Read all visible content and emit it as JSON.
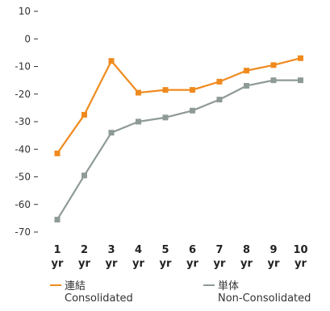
{
  "chart_data": {
    "type": "line",
    "x": [
      1,
      2,
      3,
      4,
      5,
      6,
      7,
      8,
      9,
      10
    ],
    "x_tick_labels": [
      {
        "num": "1",
        "unit": "yr"
      },
      {
        "num": "2",
        "unit": "yr"
      },
      {
        "num": "3",
        "unit": "yr"
      },
      {
        "num": "4",
        "unit": "yr"
      },
      {
        "num": "5",
        "unit": "yr"
      },
      {
        "num": "6",
        "unit": "yr"
      },
      {
        "num": "7",
        "unit": "yr"
      },
      {
        "num": "8",
        "unit": "yr"
      },
      {
        "num": "9",
        "unit": "yr"
      },
      {
        "num": "10",
        "unit": "yr"
      }
    ],
    "y_ticks": [
      "10",
      "0",
      "-10",
      "-20",
      "-30",
      "-40",
      "-50",
      "-60",
      "-70"
    ],
    "ylim": [
      -70,
      10
    ],
    "grid": false,
    "legend_placement": "bottom",
    "series": [
      {
        "name": "連結",
        "name_en": "Consolidated",
        "color": "#ef8a1e",
        "values": [
          -41.5,
          -27.5,
          -8.0,
          -19.5,
          -18.5,
          -18.5,
          -15.5,
          -11.5,
          -9.5,
          -7.0
        ]
      },
      {
        "name": "単体",
        "name_en": "Non-Consolidated",
        "color": "#8e9a96",
        "values": [
          -65.5,
          -49.5,
          -34.0,
          -30.0,
          -28.5,
          -26.0,
          -22.0,
          -17.0,
          -15.0,
          -15.0
        ]
      }
    ]
  }
}
